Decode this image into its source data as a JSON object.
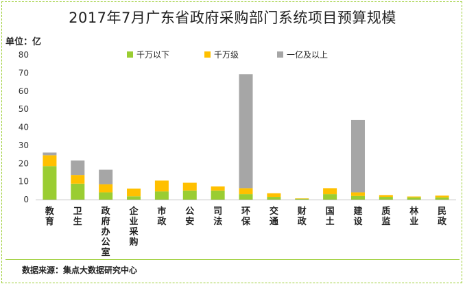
{
  "chart_data": {
    "type": "bar",
    "stacked": true,
    "title": "2017年7月广东省政府采购部门系统项目预算规模",
    "unit_label": "单位：亿",
    "ylim": [
      0,
      80
    ],
    "yticks": [
      0,
      10,
      20,
      30,
      40,
      50,
      60,
      70,
      80
    ],
    "categories": [
      "教育",
      "卫生",
      "政府办公室",
      "企业采购",
      "市政",
      "公安",
      "司法",
      "环保",
      "交通",
      "财政",
      "国土",
      "建设",
      "质监",
      "林业",
      "民政"
    ],
    "series": [
      {
        "name": "千万以下",
        "color": "#9acd32",
        "values": [
          18.5,
          8.8,
          4.0,
          1.8,
          4.5,
          5.0,
          5.0,
          3.0,
          1.5,
          0.5,
          3.0,
          2.0,
          1.5,
          1.2,
          1.2
        ]
      },
      {
        "name": "千万级",
        "color": "#ffc000",
        "values": [
          6.0,
          4.8,
          4.5,
          4.3,
          6.0,
          4.3,
          2.3,
          3.3,
          2.0,
          0.2,
          3.3,
          2.0,
          1.0,
          0.5,
          1.0
        ]
      },
      {
        "name": "一亿及以上",
        "color": "#a6a6a6",
        "values": [
          1.5,
          8.0,
          8.0,
          0,
          0,
          0,
          0,
          63.0,
          0,
          0,
          0,
          40.0,
          0,
          0,
          0
        ]
      }
    ],
    "legend_position": "top"
  },
  "source": "数据来源：集点大数据研究中心"
}
